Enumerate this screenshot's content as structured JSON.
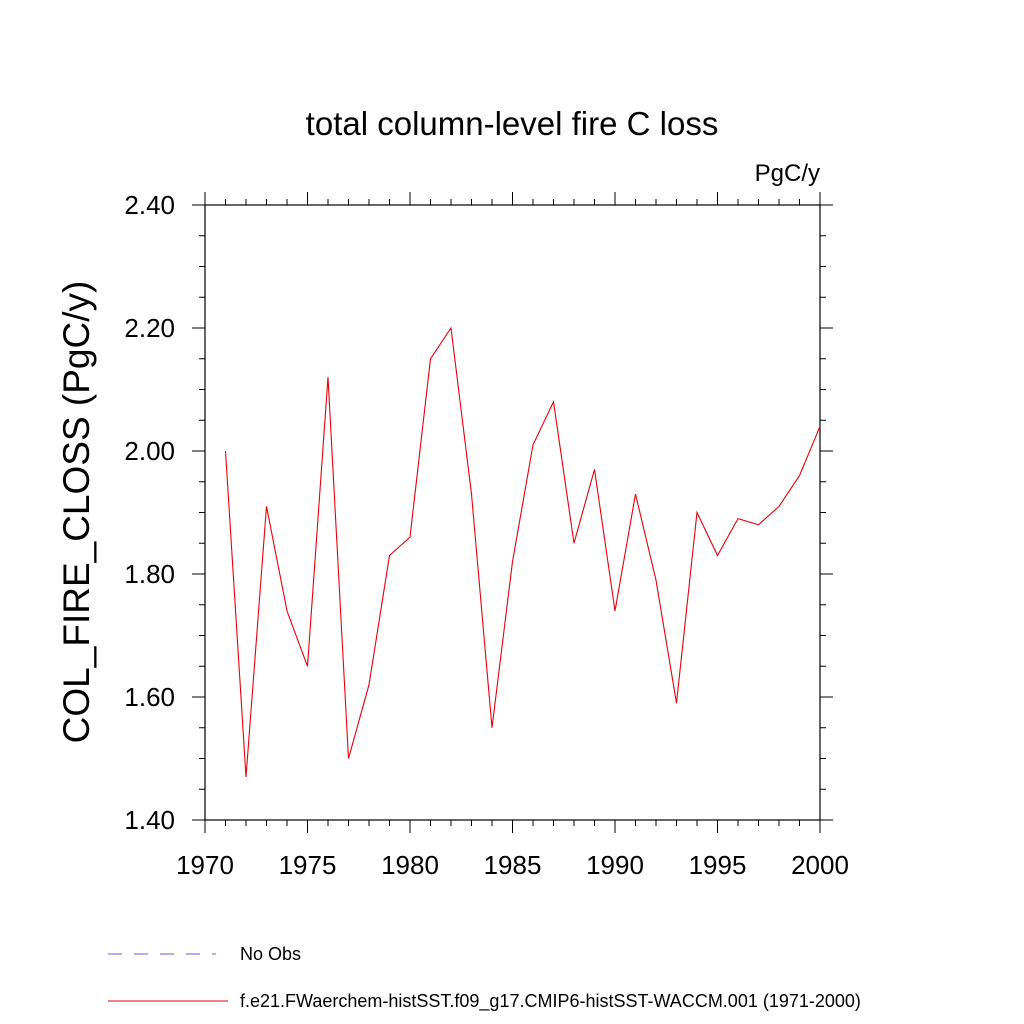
{
  "chart_data": {
    "type": "line",
    "title": "total column-level fire C loss",
    "units": "PgC/y",
    "xlabel": "",
    "ylabel": "COL_FIRE_CLOSS  (PgC/y)",
    "xlim": [
      1970,
      2000
    ],
    "ylim": [
      1.4,
      2.4
    ],
    "xticks": [
      1970,
      1975,
      1980,
      1985,
      1990,
      1995,
      2000
    ],
    "xtick_labels": [
      "1970",
      "1975",
      "1980",
      "1985",
      "1990",
      "1995",
      "2000"
    ],
    "yticks": [
      1.4,
      1.6,
      1.8,
      2.0,
      2.2,
      2.4
    ],
    "ytick_labels": [
      "1.40",
      "1.60",
      "1.80",
      "2.00",
      "2.20",
      "2.40"
    ],
    "grid": false,
    "legend_placement": "bottom-left",
    "series": [
      {
        "name": "f.e21.FWaerchem-histSST.f09_g17.CMIP6-histSST-WACCM.001 (1971-2000)",
        "color": "#e8000b",
        "style": "solid",
        "x": [
          1971,
          1972,
          1973,
          1974,
          1975,
          1976,
          1977,
          1978,
          1979,
          1980,
          1981,
          1982,
          1983,
          1984,
          1985,
          1986,
          1987,
          1988,
          1989,
          1990,
          1991,
          1992,
          1993,
          1994,
          1995,
          1996,
          1997,
          1998,
          1999,
          2000
        ],
        "values": [
          2.0,
          1.47,
          1.91,
          1.74,
          1.65,
          2.12,
          1.5,
          1.62,
          1.83,
          1.86,
          2.15,
          2.2,
          1.93,
          1.55,
          1.82,
          2.01,
          2.08,
          1.85,
          1.97,
          1.74,
          1.93,
          1.79,
          1.59,
          1.9,
          1.83,
          1.89,
          1.88,
          1.91,
          1.96,
          2.04
        ]
      }
    ],
    "legend": [
      {
        "label": "No Obs",
        "color": "#6a5acd",
        "style": "dashed"
      },
      {
        "label": "f.e21.FWaerchem-histSST.f09_g17.CMIP6-histSST-WACCM.001 (1971-2000)",
        "color": "#e8000b",
        "style": "solid"
      }
    ]
  }
}
